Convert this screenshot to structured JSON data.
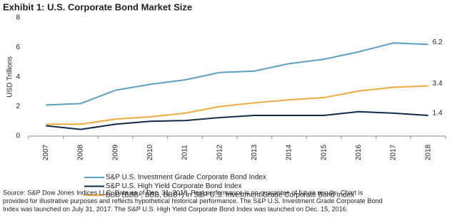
{
  "chart_data": {
    "type": "line",
    "title": "Exhibit 1: U.S. Corporate Bond Market Size",
    "y_label": "USD Trillions",
    "categories": [
      "2007",
      "2008",
      "2009",
      "2010",
      "2011",
      "2012",
      "2013",
      "2014",
      "2015",
      "2016",
      "2017",
      "2018"
    ],
    "series": [
      {
        "name": "S&P U.S. Investment Grade Corporate Bond Index",
        "color": "#5b9fc4",
        "values": [
          2.1,
          2.2,
          3.1,
          3.5,
          3.8,
          4.3,
          4.4,
          4.9,
          5.2,
          5.7,
          6.3,
          6.2
        ]
      },
      {
        "name": "S&P U.S. High Yield Corporate Bond Index",
        "color": "#0f2a4a",
        "values": [
          0.7,
          0.45,
          0.8,
          1.0,
          1.05,
          1.25,
          1.4,
          1.4,
          1.4,
          1.65,
          1.55,
          1.4
        ]
      },
      {
        "name": "BBB (BBB-, BBB, BBB+) in S&P U.S. Investment Grade Corporate Bond Index",
        "color": "#f2a93b",
        "values": [
          0.8,
          0.8,
          1.15,
          1.3,
          1.55,
          2.0,
          2.25,
          2.45,
          2.6,
          3.05,
          3.3,
          3.4
        ]
      }
    ],
    "ylim": [
      0,
      8
    ],
    "yticks": [
      0,
      2,
      4,
      6,
      8
    ],
    "grid": false,
    "source": [
      "Source: S&P Dow Jones Indices LLC. Data as of Dec. 31, 2018. Past performance is no guarantee of future results. Chart is",
      "provided for illustrative purposes and reflects hypothetical historical performance. The S&P U.S. Investment Grade Corporate Bond",
      "Index was launched on July 31, 2017. The S&P U.S. High Yield Corporate Bond Index was launched on Dec. 15, 2016."
    ]
  }
}
